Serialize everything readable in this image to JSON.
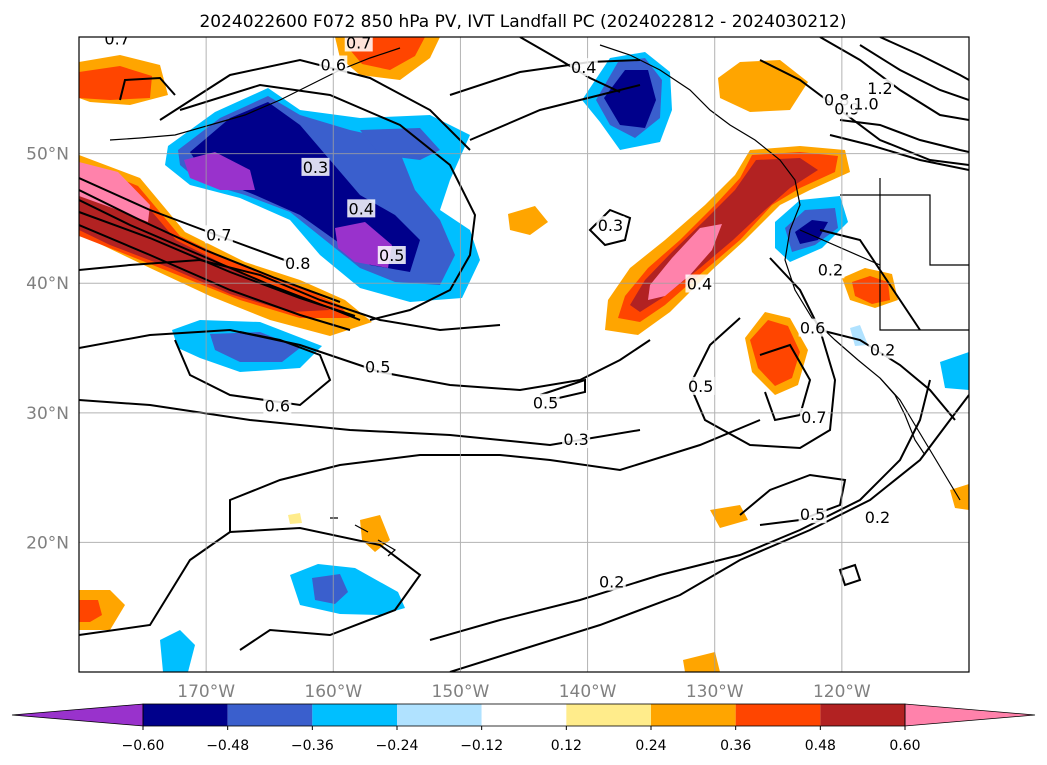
{
  "chart_data": {
    "type": "heatmap",
    "title": "2024022600 F072 850 hPa PV, IVT Landfall PC (2024022812 - 2024030212)",
    "xlabel": "",
    "ylabel": "",
    "x_ticks": [
      "170°W",
      "160°W",
      "150°W",
      "140°W",
      "130°W",
      "120°W"
    ],
    "x_tick_values": [
      -170,
      -160,
      -150,
      -140,
      -130,
      -120
    ],
    "y_ticks": [
      "50°N",
      "40°N",
      "30°N",
      "20°N"
    ],
    "y_tick_values": [
      50,
      40,
      30,
      20
    ],
    "xlim": [
      -180,
      -110
    ],
    "ylim": [
      10,
      59
    ],
    "grid": true,
    "colorbar": {
      "levels": [
        -0.72,
        -0.6,
        -0.48,
        -0.36,
        -0.24,
        -0.12,
        0.12,
        0.24,
        0.36,
        0.48,
        0.6,
        0.72
      ],
      "tick_labels": [
        "−0.60",
        "−0.48",
        "−0.36",
        "−0.24",
        "−0.12",
        "0.12",
        "0.24",
        "0.36",
        "0.48",
        "0.60"
      ],
      "colors": [
        "#9932cc",
        "#00008b",
        "#3a5fcd",
        "#00bfff",
        "#b0e2ff",
        "#ffffff",
        "#ffec8b",
        "#ffa500",
        "#ff4500",
        "#b22222",
        "#ff82ab"
      ],
      "extend": "both"
    },
    "contour_labels": [
      {
        "text": "0.7",
        "lon": -177,
        "lat": 58.8
      },
      {
        "text": "0.7",
        "lon": -158,
        "lat": 58.5
      },
      {
        "text": "0.6",
        "lon": -160,
        "lat": 56.8
      },
      {
        "text": "0.4",
        "lon": -140.3,
        "lat": 56.6
      },
      {
        "text": "0.3",
        "lon": -161.4,
        "lat": 48.9
      },
      {
        "text": "0.4",
        "lon": -157.8,
        "lat": 45.7
      },
      {
        "text": "0.5",
        "lon": -155.4,
        "lat": 42.1
      },
      {
        "text": "0.7",
        "lon": -169,
        "lat": 43.7
      },
      {
        "text": "0.8",
        "lon": -162.8,
        "lat": 41.5
      },
      {
        "text": "0.3",
        "lon": -138.2,
        "lat": 44.4
      },
      {
        "text": "0.4",
        "lon": -131.2,
        "lat": 39.9
      },
      {
        "text": "0.5",
        "lon": -156.5,
        "lat": 33.5
      },
      {
        "text": "0.6",
        "lon": -164.4,
        "lat": 30.5
      },
      {
        "text": "0.5",
        "lon": -143.3,
        "lat": 30.7
      },
      {
        "text": "0.5",
        "lon": -131.1,
        "lat": 32.0
      },
      {
        "text": "0.6",
        "lon": -122.3,
        "lat": 36.5
      },
      {
        "text": "0.7",
        "lon": -122.2,
        "lat": 29.6
      },
      {
        "text": "0.3",
        "lon": -140.9,
        "lat": 27.9
      },
      {
        "text": "0.5",
        "lon": -122.3,
        "lat": 22.1
      },
      {
        "text": "0.2",
        "lon": -117.2,
        "lat": 21.9
      },
      {
        "text": "0.2",
        "lon": -138.1,
        "lat": 16.9
      },
      {
        "text": "0.2",
        "lon": -116.8,
        "lat": 34.8
      },
      {
        "text": "0.2",
        "lon": -120.9,
        "lat": 41.0
      },
      {
        "text": "0.8",
        "lon": -120.4,
        "lat": 54.1
      },
      {
        "text": "0.9",
        "lon": -119.6,
        "lat": 53.4
      },
      {
        "text": "1.0",
        "lon": -118.1,
        "lat": 53.8
      },
      {
        "text": "1.2",
        "lon": -117.0,
        "lat": 55.0
      }
    ]
  }
}
